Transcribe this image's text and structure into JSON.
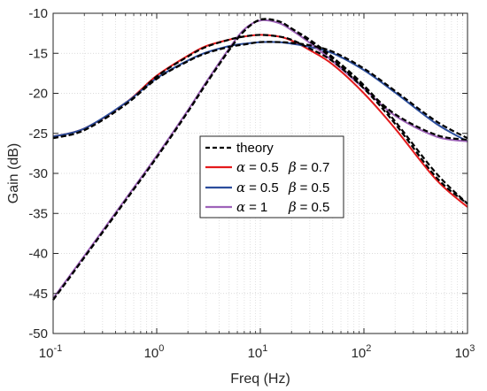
{
  "chart_data": {
    "type": "line",
    "xscale": "log",
    "xlim": [
      0.1,
      1000
    ],
    "ylim": [
      -50,
      -10
    ],
    "xlabel": "Freq (Hz)",
    "ylabel": "Gain (dB)",
    "grid": true,
    "legend_position": "center",
    "x_ticks": [
      {
        "value": 0.1,
        "base": "10",
        "exp": "-1"
      },
      {
        "value": 1,
        "base": "10",
        "exp": "0"
      },
      {
        "value": 10,
        "base": "10",
        "exp": "1"
      },
      {
        "value": 100,
        "base": "10",
        "exp": "2"
      },
      {
        "value": 1000,
        "base": "10",
        "exp": "3"
      }
    ],
    "y_ticks": [
      {
        "value": -10,
        "label": "-10"
      },
      {
        "value": -15,
        "label": "-15"
      },
      {
        "value": -20,
        "label": "-20"
      },
      {
        "value": -25,
        "label": "-25"
      },
      {
        "value": -30,
        "label": "-30"
      },
      {
        "value": -35,
        "label": "-35"
      },
      {
        "value": -40,
        "label": "-40"
      },
      {
        "value": -45,
        "label": "-45"
      },
      {
        "value": -50,
        "label": "-50"
      }
    ],
    "x": [
      0.1,
      0.2,
      0.5,
      1,
      2,
      3,
      5,
      7,
      10,
      15,
      20,
      30,
      50,
      100,
      200,
      500,
      1000
    ],
    "series": [
      {
        "id": "theory-a",
        "legend": "theory",
        "color": "#000000",
        "style": "dashed",
        "values": [
          -25.6,
          -24.6,
          -21.4,
          -18.2,
          -16.0,
          -15.0,
          -14.2,
          -13.9,
          -13.6,
          -13.6,
          -13.7,
          -14.0,
          -14.8,
          -16.9,
          -19.7,
          -23.5,
          -25.6
        ]
      },
      {
        "id": "theory-b",
        "color": "#000000",
        "style": "dashed",
        "values": [
          -45.8,
          -40.5,
          -33.4,
          -28.0,
          -22.3,
          -18.8,
          -14.6,
          -12.2,
          -10.8,
          -11.0,
          -11.9,
          -13.3,
          -15.5,
          -19.0,
          -23.5,
          -30.0,
          -33.8
        ]
      },
      {
        "id": "theory-c",
        "color": "#000000",
        "style": "dashed",
        "values": [
          -25.6,
          -24.6,
          -21.4,
          -17.9,
          -15.4,
          -14.2,
          -13.3,
          -12.9,
          -12.7,
          -12.9,
          -13.3,
          -14.4,
          -16.0,
          -19.4,
          -23.8,
          -30.5,
          -33.8
        ]
      },
      {
        "id": "theory-d",
        "color": "#000000",
        "style": "dashed",
        "values": [
          -45.8,
          -40.5,
          -33.4,
          -28.0,
          -22.3,
          -18.8,
          -14.6,
          -12.2,
          -10.8,
          -11.0,
          -11.9,
          -13.5,
          -15.7,
          -19.2,
          -22.6,
          -25.2,
          -25.8
        ]
      },
      {
        "id": "red",
        "legend_alpha_value": "0.5",
        "legend_beta_value": "0.7",
        "color": "#e41a1c",
        "style": "solid",
        "values": [
          -25.4,
          -24.4,
          -21.2,
          -17.8,
          -15.3,
          -14.1,
          -13.3,
          -12.9,
          -12.7,
          -12.9,
          -13.4,
          -14.6,
          -16.4,
          -20.0,
          -24.4,
          -30.8,
          -34.2
        ]
      },
      {
        "id": "blue",
        "legend_alpha_value": "0.5",
        "legend_beta_value": "0.5",
        "color": "#2b4d9c",
        "style": "solid",
        "values": [
          -25.4,
          -24.4,
          -21.2,
          -18.1,
          -15.9,
          -14.9,
          -14.1,
          -13.8,
          -13.6,
          -13.6,
          -13.8,
          -14.2,
          -15.0,
          -17.1,
          -19.9,
          -23.8,
          -26.0
        ]
      },
      {
        "id": "purple",
        "legend_alpha_value": "1",
        "legend_beta_value": "0.5",
        "color": "#9e63b9",
        "style": "solid",
        "values": [
          -45.6,
          -40.3,
          -33.2,
          -27.8,
          -22.1,
          -18.6,
          -14.4,
          -12.0,
          -10.9,
          -11.2,
          -12.1,
          -13.7,
          -16.0,
          -19.4,
          -22.8,
          -25.4,
          -26.0
        ]
      }
    ],
    "legend": {
      "theory_label": "theory",
      "alpha_symbol": "α",
      "beta_symbol": "β",
      "equals": "="
    }
  }
}
